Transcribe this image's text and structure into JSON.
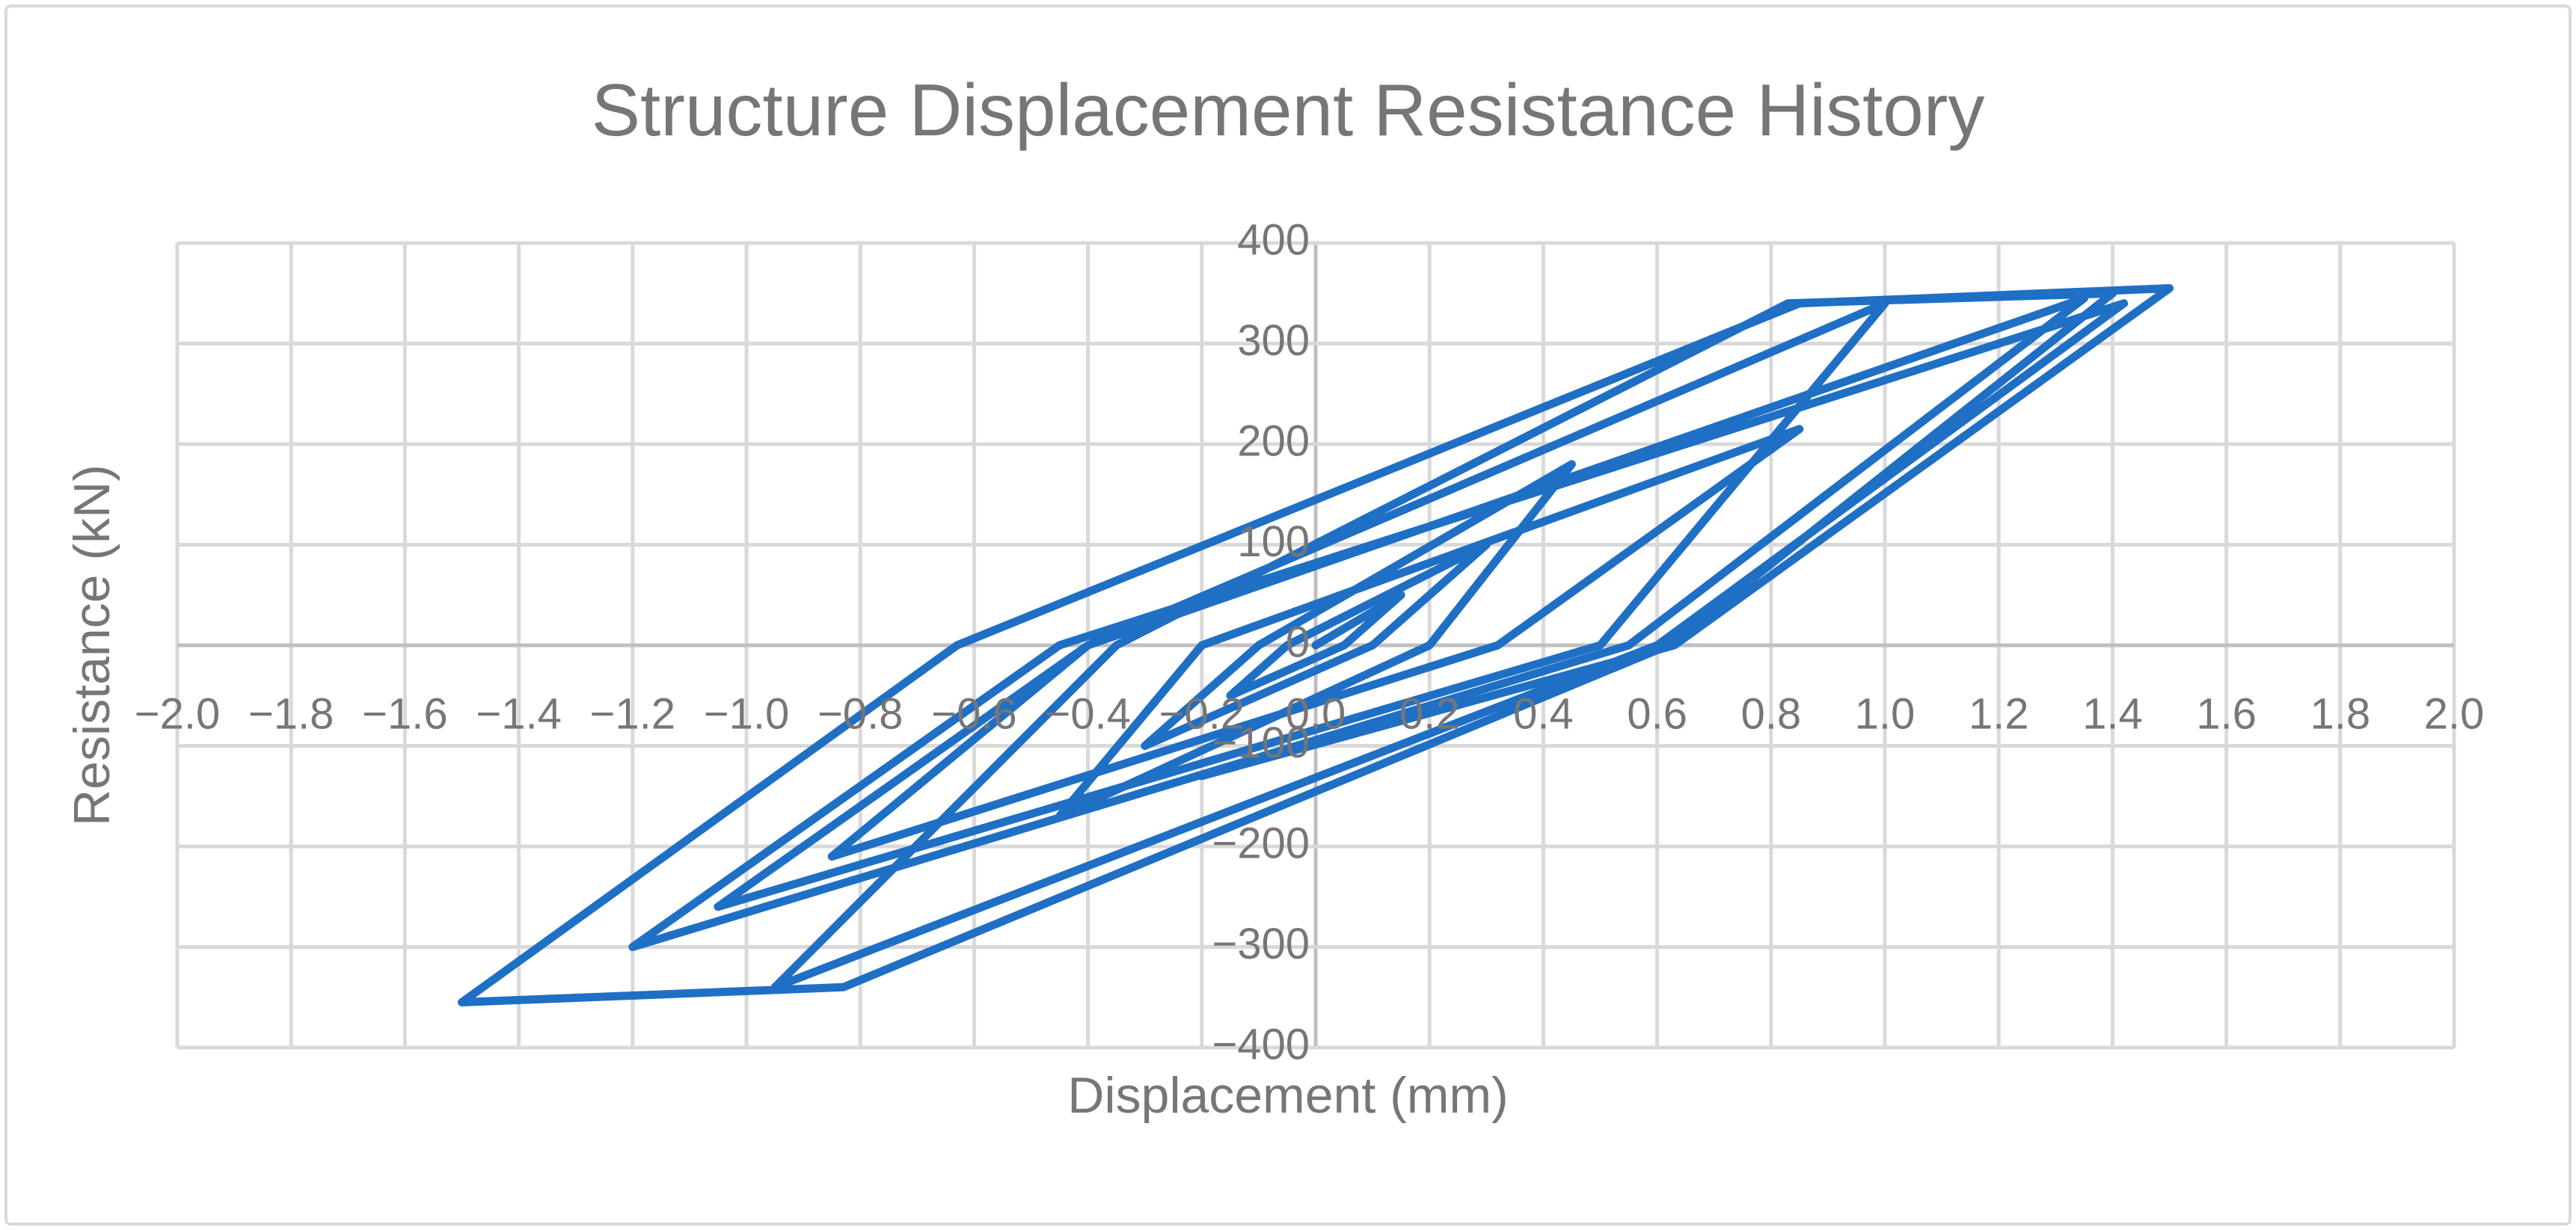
{
  "chart_data": {
    "type": "line",
    "title": "Structure Displacement Resistance History",
    "xlabel": "Displacement (mm)",
    "ylabel": "Resistance (kN)",
    "color": "#1f6fc5",
    "grid": true,
    "xlim": [
      -2.0,
      2.0
    ],
    "ylim": [
      -400,
      400
    ],
    "xticks": [
      {
        "value": -2.0,
        "label": "−2.0"
      },
      {
        "value": -1.8,
        "label": "−1.8"
      },
      {
        "value": -1.6,
        "label": "−1.6"
      },
      {
        "value": -1.4,
        "label": "−1.4"
      },
      {
        "value": -1.2,
        "label": "−1.2"
      },
      {
        "value": -1.0,
        "label": "−1.0"
      },
      {
        "value": -0.8,
        "label": "−0.8"
      },
      {
        "value": -0.6,
        "label": "−0.6"
      },
      {
        "value": -0.4,
        "label": "−0.4"
      },
      {
        "value": -0.2,
        "label": "−0.2"
      },
      {
        "value": 0,
        "label": "0.0"
      },
      0.2,
      0.4,
      0.6,
      0.8,
      {
        "value": 1.0,
        "label": "1.0"
      },
      1.2,
      1.4,
      1.6,
      1.8,
      {
        "value": 2.0,
        "label": "2.0"
      }
    ],
    "yticks": [
      {
        "value": -400,
        "label": "−400"
      },
      {
        "value": -300,
        "label": "−300"
      },
      {
        "value": -200,
        "label": "−200"
      },
      {
        "value": -100,
        "label": "−100"
      },
      0,
      100,
      200,
      300,
      400
    ],
    "x": [
      0,
      0.15,
      0.05,
      -0.15,
      -0.05,
      0.3,
      0.1,
      -0.3,
      -0.1,
      0.45,
      0.2,
      -0.45,
      -0.2,
      0.85,
      0.32,
      -0.85,
      -0.4,
      1.0,
      0.5,
      -1.05,
      -0.4,
      1.35,
      0.55,
      -1.2,
      -0.45,
      1.42,
      0.6,
      -0.95,
      -0.35,
      0.83,
      1.4,
      0.62,
      -0.83,
      -1.5,
      -0.63,
      0.85,
      1.5,
      0.63,
      -0.2
    ],
    "values": [
      0,
      50,
      0,
      -50,
      0,
      100,
      0,
      -100,
      0,
      180,
      0,
      -170,
      0,
      215,
      0,
      -210,
      0,
      340,
      0,
      -260,
      0,
      345,
      0,
      -300,
      0,
      340,
      0,
      -340,
      0,
      340,
      350,
      0,
      -340,
      -355,
      0,
      340,
      355,
      0,
      -130
    ]
  }
}
